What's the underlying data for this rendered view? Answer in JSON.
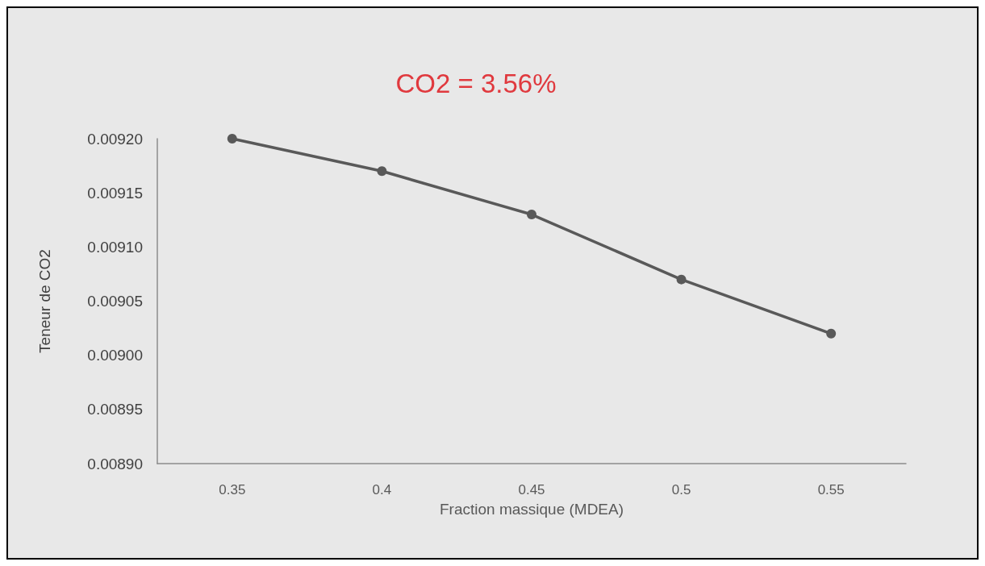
{
  "chart_data": {
    "type": "line",
    "title": "CO2 = 3.56%",
    "xlabel": "Fraction massique (MDEA)",
    "ylabel": "Teneur de CO2",
    "categories": [
      "0.35",
      "0.4",
      "0.45",
      "0.5",
      "0.55"
    ],
    "series": [
      {
        "color": "#595959",
        "values": [
          0.0092,
          0.00917,
          0.00913,
          0.00907,
          0.00902
        ]
      }
    ],
    "ylim": [
      0.0089,
      0.0092
    ],
    "yticks": [
      {
        "value": 0.0089,
        "label": "0.00890"
      },
      {
        "value": 0.00895,
        "label": "0.00895"
      },
      {
        "value": 0.009,
        "label": "0.00900"
      },
      {
        "value": 0.00905,
        "label": "0.00905"
      },
      {
        "value": 0.0091,
        "label": "0.00910"
      },
      {
        "value": 0.00915,
        "label": "0.00915"
      },
      {
        "value": 0.0092,
        "label": "0.00920"
      }
    ],
    "grid": false,
    "marker": "circle",
    "line_style": "solid"
  }
}
